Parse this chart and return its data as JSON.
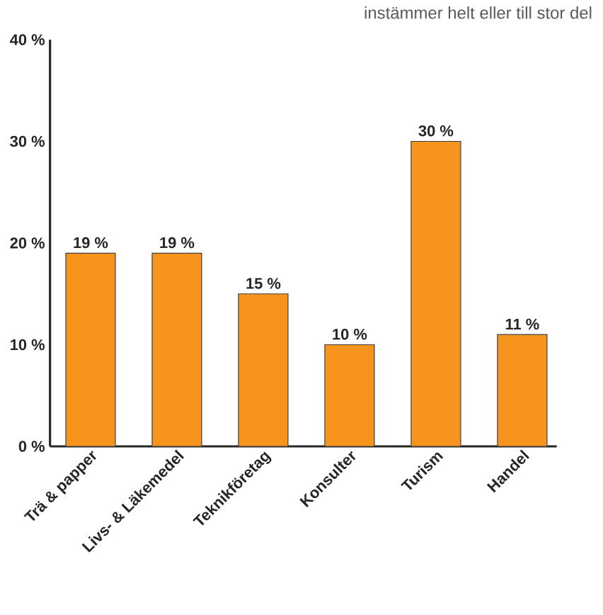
{
  "chart_data": {
    "type": "bar",
    "title": "instämmer helt eller till stor del",
    "categories": [
      "Trä & papper",
      "Livs- & Läkemedel",
      "Teknikföretag",
      "Konsulter",
      "Turism",
      "Handel"
    ],
    "values": [
      19,
      19,
      15,
      10,
      30,
      11
    ],
    "value_labels": [
      "19 %",
      "19 %",
      "15 %",
      "10 %",
      "30 %",
      "11 %"
    ],
    "color": "#f7941d",
    "ylim": [
      0,
      40
    ],
    "yticks": [
      {
        "value": 0,
        "label": "0 %"
      },
      {
        "value": 10,
        "label": "10 %"
      },
      {
        "value": 20,
        "label": "20 %"
      },
      {
        "value": 30,
        "label": "30 %"
      },
      {
        "value": 40,
        "label": "40 %"
      }
    ],
    "grid": false
  }
}
